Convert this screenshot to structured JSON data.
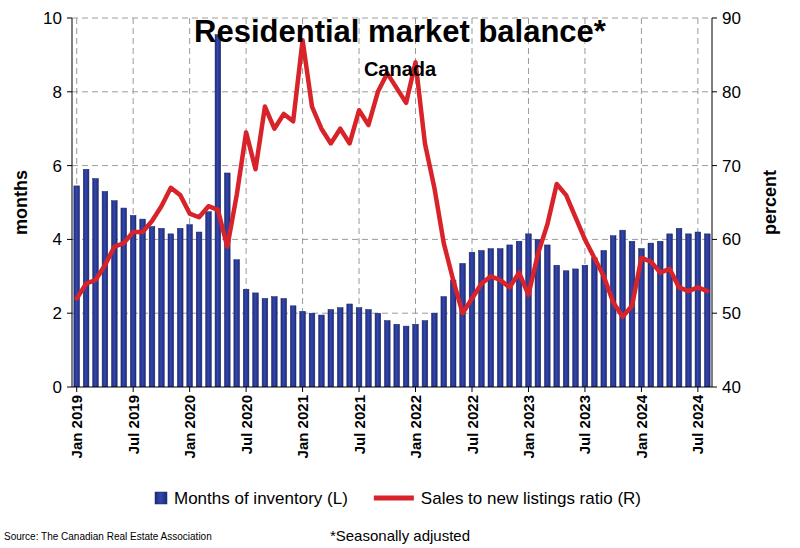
{
  "chart_data": {
    "type": "bar",
    "title": "Residential market balance*",
    "subtitle": "Canada",
    "y_label": "months",
    "y2_label": "percent",
    "source": "Source: The Canadian Real Estate Association",
    "note": "*Seasonally adjusted",
    "categories": [
      "Jan 2019",
      null,
      null,
      null,
      null,
      null,
      "Jul 2019",
      null,
      null,
      null,
      null,
      null,
      "Jan 2020",
      null,
      null,
      null,
      null,
      null,
      "Jul 2020",
      null,
      null,
      null,
      null,
      null,
      "Jan 2021",
      null,
      null,
      null,
      null,
      null,
      "Jul 2021",
      null,
      null,
      null,
      null,
      null,
      "Jan 2022",
      null,
      null,
      null,
      null,
      null,
      "Jul 2022",
      null,
      null,
      null,
      null,
      null,
      "Jan 2023",
      null,
      null,
      null,
      null,
      null,
      "Jul 2023",
      null,
      null,
      null,
      null,
      null,
      "Jan 2024",
      null,
      null,
      null,
      null,
      null,
      "Jul 2024",
      null
    ],
    "series": [
      {
        "name": "Months of inventory (L)",
        "type": "bar",
        "color": "#3347ad",
        "values": [
          5.45,
          5.9,
          5.65,
          5.3,
          5.05,
          4.85,
          4.65,
          4.55,
          4.35,
          4.3,
          4.15,
          4.3,
          4.4,
          4.2,
          4.75,
          9.55,
          5.8,
          3.45,
          2.65,
          2.55,
          2.4,
          2.45,
          2.4,
          2.2,
          2.05,
          2.0,
          1.95,
          2.1,
          2.15,
          2.25,
          2.15,
          2.1,
          2.0,
          1.8,
          1.7,
          1.65,
          1.7,
          1.8,
          2.0,
          2.45,
          2.9,
          3.35,
          3.65,
          3.7,
          3.75,
          3.75,
          3.85,
          3.95,
          4.15,
          4.0,
          3.85,
          3.3,
          3.15,
          3.2,
          3.3,
          3.5,
          3.7,
          4.1,
          4.25,
          3.95,
          3.75,
          3.9,
          3.95,
          4.15,
          4.3,
          4.15,
          4.2,
          4.15
        ]
      },
      {
        "name": "Sales to new listings ratio (R)",
        "type": "line",
        "axis": "y2",
        "color": "#d9232a",
        "values": [
          52,
          54,
          54.5,
          56.5,
          59,
          59.5,
          61,
          61,
          62.5,
          64.5,
          67,
          66,
          63.5,
          63,
          64.5,
          64,
          59,
          66,
          74.5,
          69.5,
          78,
          75,
          77,
          76,
          87,
          78,
          75,
          73,
          75,
          73,
          77.5,
          75.5,
          80,
          82.5,
          80.5,
          78.5,
          84,
          73,
          67,
          59.5,
          54.5,
          50,
          52,
          54,
          55,
          54.5,
          53.5,
          55.5,
          52.5,
          58,
          62,
          67.5,
          66,
          63,
          60,
          57.5,
          55,
          51.5,
          49.5,
          51,
          57.5,
          57,
          55.5,
          56,
          53.5,
          53,
          53.5,
          53
        ]
      }
    ],
    "ylim": [
      0,
      10
    ],
    "yticks": [
      0,
      2,
      4,
      6,
      8,
      10
    ],
    "y2lim": [
      40,
      90
    ],
    "y2ticks": [
      40,
      50,
      60,
      70,
      80,
      90
    ],
    "grid": true,
    "legend": "bottom"
  }
}
